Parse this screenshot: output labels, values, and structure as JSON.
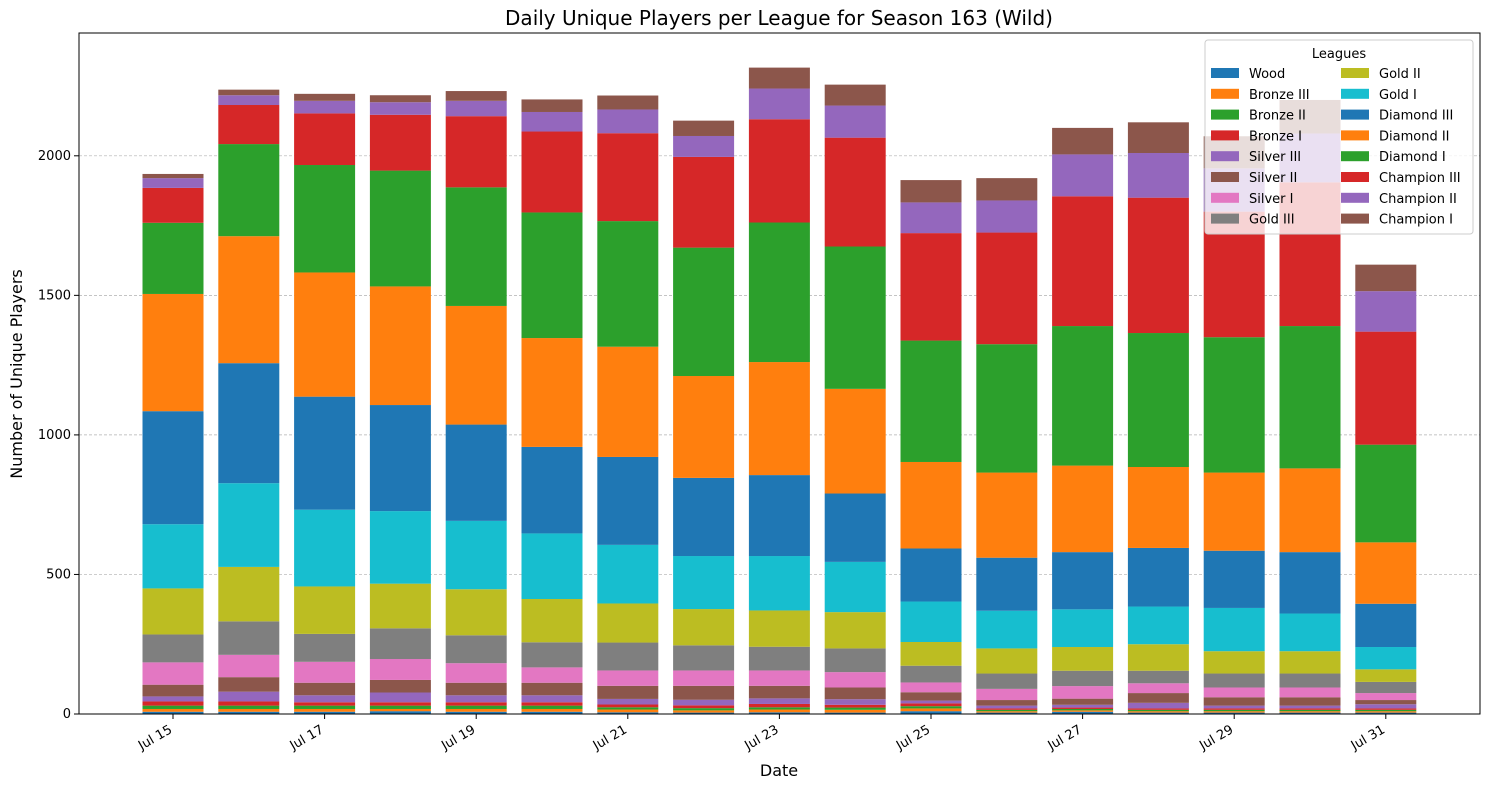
{
  "chart_data": {
    "type": "bar",
    "stacked": true,
    "title": "Daily Unique Players per League for Season 163 (Wild)",
    "xlabel": "Date",
    "ylabel": "Number of Unique Players",
    "ylim": [
      0,
      2440
    ],
    "yticks": [
      0,
      500,
      1000,
      1500,
      2000
    ],
    "grid": "y-dashed",
    "legend_title": "Leagues",
    "legend_position": "top-right",
    "categories": [
      "2024-07-15",
      "2024-07-16",
      "2024-07-17",
      "2024-07-18",
      "2024-07-19",
      "2024-07-20",
      "2024-07-21",
      "2024-07-22",
      "2024-07-23",
      "2024-07-24",
      "2024-07-25",
      "2024-07-26",
      "2024-07-27",
      "2024-07-28",
      "2024-07-29",
      "2024-07-30",
      "2024-07-31"
    ],
    "xtick_labels": [
      "Jul 15",
      "",
      "Jul 17",
      "",
      "Jul 19",
      "",
      "Jul 21",
      "",
      "Jul 23",
      "",
      "Jul 25",
      "",
      "Jul 27",
      "",
      "Jul 29",
      "",
      "Jul 31"
    ],
    "series": [
      {
        "name": "Wood",
        "color": "#1f77b4",
        "values": [
          8,
          8,
          8,
          10,
          8,
          8,
          6,
          5,
          6,
          5,
          10,
          5,
          8,
          5,
          5,
          5,
          5
        ]
      },
      {
        "name": "Bronze III",
        "color": "#ff7f0e",
        "values": [
          10,
          10,
          10,
          8,
          10,
          10,
          10,
          8,
          10,
          10,
          10,
          5,
          5,
          5,
          5,
          5,
          5
        ]
      },
      {
        "name": "Bronze II",
        "color": "#2ca02c",
        "values": [
          12,
          12,
          12,
          12,
          12,
          12,
          8,
          8,
          8,
          8,
          8,
          5,
          5,
          5,
          5,
          5,
          5
        ]
      },
      {
        "name": "Bronze I",
        "color": "#d62728",
        "values": [
          15,
          15,
          12,
          12,
          12,
          12,
          10,
          10,
          12,
          10,
          10,
          5,
          5,
          5,
          5,
          5,
          5
        ]
      },
      {
        "name": "Silver III",
        "color": "#9467bd",
        "values": [
          18,
          35,
          25,
          35,
          25,
          25,
          20,
          20,
          20,
          20,
          10,
          10,
          10,
          20,
          10,
          10,
          15
        ]
      },
      {
        "name": "Silver II",
        "color": "#8c564b",
        "values": [
          42,
          52,
          45,
          45,
          45,
          45,
          47,
          50,
          45,
          42,
          30,
          20,
          22,
          35,
          30,
          30,
          15
        ]
      },
      {
        "name": "Silver I",
        "color": "#e377c2",
        "values": [
          80,
          80,
          75,
          75,
          70,
          55,
          55,
          55,
          55,
          55,
          35,
          40,
          45,
          35,
          35,
          35,
          25
        ]
      },
      {
        "name": "Gold III",
        "color": "#7f7f7f",
        "values": [
          100,
          120,
          100,
          110,
          100,
          90,
          100,
          90,
          85,
          85,
          60,
          55,
          55,
          45,
          50,
          50,
          40
        ]
      },
      {
        "name": "Gold II",
        "color": "#bcbd22",
        "values": [
          165,
          195,
          170,
          160,
          165,
          155,
          140,
          130,
          130,
          130,
          85,
          90,
          85,
          95,
          80,
          80,
          45
        ]
      },
      {
        "name": "Gold I",
        "color": "#17becf",
        "values": [
          230,
          300,
          275,
          260,
          245,
          235,
          210,
          190,
          195,
          180,
          145,
          135,
          135,
          135,
          155,
          135,
          80
        ]
      },
      {
        "name": "Diamond III",
        "color": "#1f77b4",
        "values": [
          405,
          430,
          405,
          380,
          345,
          310,
          315,
          280,
          290,
          245,
          190,
          190,
          205,
          210,
          205,
          220,
          155
        ]
      },
      {
        "name": "Diamond II",
        "color": "#ff7f0e",
        "values": [
          420,
          455,
          445,
          425,
          425,
          390,
          395,
          365,
          405,
          375,
          310,
          305,
          310,
          290,
          280,
          300,
          220
        ]
      },
      {
        "name": "Diamond I",
        "color": "#2ca02c",
        "values": [
          255,
          330,
          385,
          415,
          425,
          450,
          450,
          460,
          500,
          510,
          435,
          460,
          500,
          480,
          485,
          510,
          350
        ]
      },
      {
        "name": "Champion III",
        "color": "#d62728",
        "values": [
          125,
          140,
          185,
          200,
          255,
          290,
          315,
          325,
          370,
          390,
          385,
          400,
          465,
          485,
          450,
          515,
          405
        ]
      },
      {
        "name": "Champion II",
        "color": "#9467bd",
        "values": [
          35,
          35,
          45,
          45,
          55,
          70,
          85,
          75,
          110,
          115,
          110,
          115,
          150,
          160,
          155,
          175,
          145
        ]
      },
      {
        "name": "Champion I",
        "color": "#8c564b",
        "values": [
          15,
          20,
          25,
          25,
          35,
          45,
          50,
          55,
          75,
          75,
          80,
          80,
          95,
          110,
          115,
          120,
          95
        ]
      }
    ]
  }
}
